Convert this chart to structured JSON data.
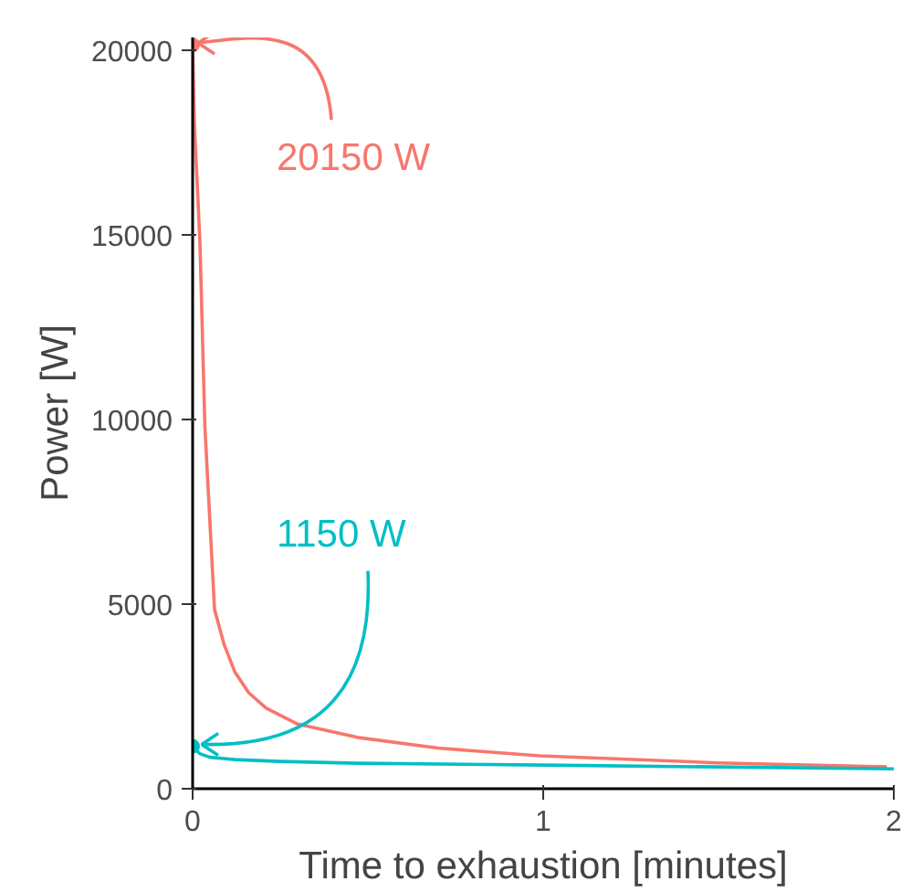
{
  "chart_data": {
    "type": "line",
    "xlabel": "Time to exhaustion [minutes]",
    "ylabel": "Power [W]",
    "xlim": [
      0,
      2
    ],
    "ylim": [
      0,
      20350
    ],
    "xticks": [
      0,
      1,
      2
    ],
    "yticks": [
      0,
      5000,
      10000,
      15000,
      20000
    ],
    "grid": false,
    "series": [
      {
        "color": "#f8766d",
        "x": [
          0,
          0.005,
          0.01,
          0.015,
          0.021,
          0.035,
          0.0625,
          0.09,
          0.12,
          0.16,
          0.21,
          0.3,
          0.47,
          0.7,
          0.99,
          1.5,
          1.98
        ],
        "values": [
          20150,
          18000,
          17000,
          16000,
          14750,
          9800,
          4850,
          3900,
          3170,
          2600,
          2180,
          1750,
          1390,
          1100,
          890,
          700,
          590
        ]
      },
      {
        "color": "#00bfc4",
        "x": [
          0,
          0.02,
          0.05,
          0.12,
          0.25,
          0.47,
          1,
          1.5,
          2
        ],
        "values": [
          1150,
          950,
          850,
          790,
          740,
          690,
          640,
          590,
          540
        ]
      }
    ],
    "annotations": [
      {
        "text": "20150 W",
        "x": 0,
        "y": 20150
      },
      {
        "text": "1150 W",
        "x": 0,
        "y": 1150
      }
    ]
  }
}
